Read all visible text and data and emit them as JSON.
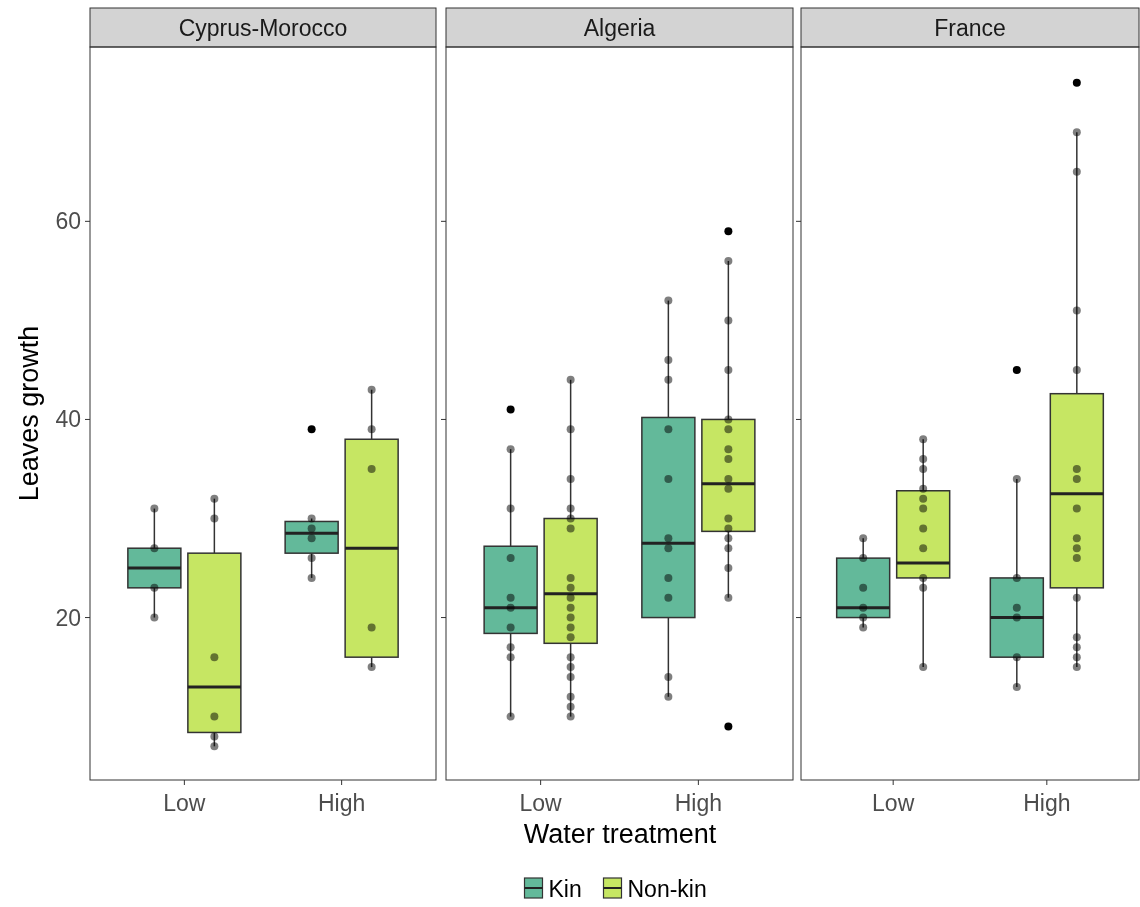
{
  "chart_data": [
    {
      "type": "box",
      "title": "Cyprus-Morocco",
      "ylabel": "Leaves growth",
      "categories": [
        "Low",
        "High"
      ],
      "ylim": [
        3.6,
        77.6
      ],
      "yticks": [
        20,
        40,
        60
      ],
      "grid": false,
      "legend": false,
      "series": [
        {
          "color": "#63b99a",
          "boxes": [
            {
              "low": 20,
              "q1": 23,
              "median": 25,
              "q3": 27,
              "high": 31
            },
            {
              "low": 24,
              "q1": 26.5,
              "median": 28.5,
              "q3": 29.7,
              "high": 30,
              "outliers": [
                39
              ]
            }
          ]
        },
        {
          "color": "#c6e663",
          "boxes": [
            {
              "low": 7,
              "q1": 8.4,
              "median": 13,
              "q3": 26.5,
              "high": 32
            },
            {
              "low": 15,
              "q1": 16,
              "median": 27,
              "q3": 38,
              "high": 43
            }
          ]
        },
        {
          "type": "scatter",
          "color": "#000000",
          "x": [
            "Low",
            "Low",
            "Low",
            "Low",
            "High",
            "High",
            "High",
            "High",
            "High"
          ],
          "values": [
            31,
            27,
            23,
            20,
            30,
            29,
            28,
            26,
            24
          ]
        },
        {
          "type": "scatter",
          "color": "#000000",
          "x": [
            "Low",
            "Low",
            "Low",
            "Low",
            "Low",
            "Low",
            "High",
            "High",
            "High",
            "High",
            "High"
          ],
          "values": [
            32,
            30,
            16,
            10,
            8,
            7,
            43,
            39,
            35,
            19,
            15
          ]
        }
      ]
    },
    {
      "type": "box",
      "title": "Algeria",
      "xlabel": "Water treatment",
      "categories": [
        "Low",
        "High"
      ],
      "ylim": [
        3.6,
        77.6
      ],
      "yticks": [
        20,
        40,
        60
      ],
      "tick_labels": "x",
      "grid": false,
      "legend": "bottom",
      "series": [
        {
          "name": "Kin",
          "color": "#63b99a",
          "boxes": [
            {
              "low": 10,
              "q1": 18.4,
              "median": 21,
              "q3": 27.2,
              "high": 37,
              "outliers": [
                41
              ]
            },
            {
              "low": 12,
              "q1": 20,
              "median": 27.5,
              "q3": 40.2,
              "high": 52
            }
          ]
        },
        {
          "name": "Non-kin",
          "color": "#c6e663",
          "boxes": [
            {
              "low": 10,
              "q1": 17.4,
              "median": 22.4,
              "q3": 30,
              "high": 44
            },
            {
              "low": 22,
              "q1": 28.7,
              "median": 33.5,
              "q3": 40,
              "high": 56,
              "outliers": [
                59,
                9
              ]
            }
          ]
        },
        {
          "type": "scatter",
          "color": "#000000",
          "x": [
            "Low",
            "Low",
            "Low",
            "Low",
            "Low",
            "Low",
            "Low",
            "Low",
            "Low",
            "High",
            "High",
            "High",
            "High",
            "High",
            "High",
            "High",
            "High",
            "High",
            "High",
            "High"
          ],
          "values": [
            37,
            31,
            26,
            22,
            21,
            19,
            17,
            16,
            10,
            52,
            46,
            44,
            39,
            34,
            28,
            27,
            24,
            22,
            14,
            12
          ]
        },
        {
          "type": "scatter",
          "color": "#000000",
          "x": [
            "Low",
            "Low",
            "Low",
            "Low",
            "Low",
            "Low",
            "Low",
            "Low",
            "Low",
            "Low",
            "Low",
            "Low",
            "Low",
            "Low",
            "Low",
            "Low",
            "Low",
            "Low",
            "Low",
            "High",
            "High",
            "High",
            "High",
            "High",
            "High",
            "High",
            "High",
            "High",
            "High",
            "High",
            "High",
            "High",
            "High",
            "High"
          ],
          "values": [
            44,
            39,
            34,
            31,
            30,
            29,
            24,
            23,
            22,
            21,
            20,
            19,
            18,
            16,
            15,
            14,
            12,
            11,
            10,
            56,
            50,
            45,
            40,
            39,
            37,
            36,
            34,
            33,
            30,
            29,
            28,
            27,
            25,
            22
          ]
        }
      ]
    },
    {
      "type": "box",
      "title": "France",
      "categories": [
        "Low",
        "High"
      ],
      "ylim": [
        3.6,
        77.6
      ],
      "yticks": [
        20,
        40,
        60
      ],
      "tick_labels": "x",
      "grid": false,
      "legend": false,
      "series": [
        {
          "color": "#63b99a",
          "boxes": [
            {
              "low": 19,
              "q1": 20,
              "median": 21,
              "q3": 26,
              "high": 28
            },
            {
              "low": 13,
              "q1": 16,
              "median": 20,
              "q3": 24,
              "high": 34,
              "outliers": [
                45
              ]
            }
          ]
        },
        {
          "color": "#c6e663",
          "boxes": [
            {
              "low": 15,
              "q1": 24,
              "median": 25.5,
              "q3": 32.8,
              "high": 38
            },
            {
              "low": 15,
              "q1": 23,
              "median": 32.5,
              "q3": 42.6,
              "high": 69,
              "outliers": [
                74
              ]
            }
          ]
        },
        {
          "type": "scatter",
          "color": "#000000",
          "x": [
            "Low",
            "Low",
            "Low",
            "Low",
            "Low",
            "Low",
            "High",
            "High",
            "High",
            "High",
            "High",
            "High"
          ],
          "values": [
            28,
            26,
            23,
            21,
            20,
            19,
            34,
            24,
            21,
            20,
            16,
            13
          ]
        },
        {
          "type": "scatter",
          "color": "#000000",
          "x": [
            "Low",
            "Low",
            "Low",
            "Low",
            "Low",
            "Low",
            "Low",
            "Low",
            "Low",
            "Low",
            "Low",
            "High",
            "High",
            "High",
            "High",
            "High",
            "High",
            "High",
            "High",
            "High",
            "High",
            "High",
            "High",
            "High",
            "High",
            "High"
          ],
          "values": [
            38,
            36,
            35,
            33,
            32,
            31,
            29,
            27,
            24,
            23,
            15,
            69,
            65,
            51,
            45,
            35,
            34,
            31,
            28,
            27,
            26,
            22,
            18,
            17,
            16,
            15
          ]
        }
      ]
    }
  ]
}
